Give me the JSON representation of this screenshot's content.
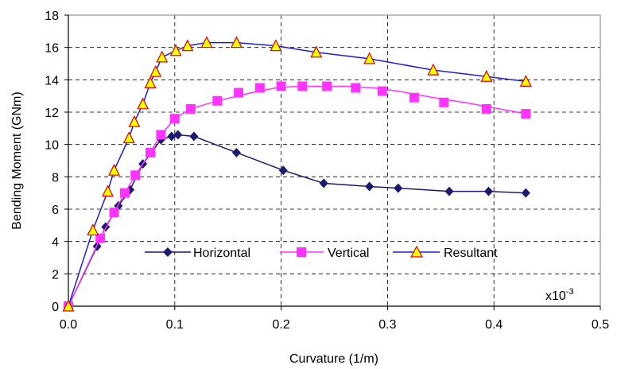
{
  "chart_data": {
    "type": "line",
    "xlabel": "Curvature (1/m)",
    "ylabel": "Bending Moment (GNm)",
    "x_multiplier_label": "x10",
    "x_multiplier_exp": "-3",
    "xlim": [
      0,
      0.5
    ],
    "ylim": [
      0,
      18
    ],
    "x_ticks": [
      "0.0",
      "0.1",
      "0.2",
      "0.3",
      "0.4",
      "0.5"
    ],
    "y_ticks": [
      "0",
      "2",
      "4",
      "6",
      "8",
      "10",
      "12",
      "14",
      "16",
      "18"
    ],
    "grid": true,
    "legend_position": "bottom-center",
    "series": [
      {
        "name": "Horizontal",
        "color": "#1a1a6e",
        "marker": "diamond",
        "points": [
          [
            0,
            0
          ],
          [
            0.027,
            3.7
          ],
          [
            0.035,
            4.9
          ],
          [
            0.047,
            6.2
          ],
          [
            0.058,
            7.2
          ],
          [
            0.07,
            8.8
          ],
          [
            0.078,
            9.5
          ],
          [
            0.087,
            10.3
          ],
          [
            0.097,
            10.5
          ],
          [
            0.103,
            10.6
          ],
          [
            0.118,
            10.5
          ],
          [
            0.158,
            9.5
          ],
          [
            0.202,
            8.4
          ],
          [
            0.24,
            7.6
          ],
          [
            0.283,
            7.4
          ],
          [
            0.31,
            7.3
          ],
          [
            0.358,
            7.1
          ],
          [
            0.395,
            7.1
          ],
          [
            0.43,
            7.0
          ]
        ],
        "marker_points": [
          [
            0,
            0
          ],
          [
            0.027,
            3.7
          ],
          [
            0.035,
            4.9
          ],
          [
            0.047,
            6.2
          ],
          [
            0.058,
            7.2
          ],
          [
            0.07,
            8.8
          ],
          [
            0.078,
            9.5
          ],
          [
            0.087,
            10.3
          ],
          [
            0.097,
            10.5
          ],
          [
            0.103,
            10.6
          ],
          [
            0.118,
            10.5
          ],
          [
            0.158,
            9.5
          ],
          [
            0.202,
            8.4
          ],
          [
            0.24,
            7.6
          ],
          [
            0.283,
            7.4
          ],
          [
            0.31,
            7.3
          ],
          [
            0.358,
            7.1
          ],
          [
            0.395,
            7.1
          ],
          [
            0.43,
            7.0
          ]
        ]
      },
      {
        "name": "Vertical",
        "color": "#ff33ff",
        "marker": "square",
        "points": [
          [
            0,
            0
          ],
          [
            0.03,
            4.2
          ],
          [
            0.043,
            5.8
          ],
          [
            0.053,
            7.0
          ],
          [
            0.063,
            8.1
          ],
          [
            0.077,
            9.5
          ],
          [
            0.087,
            10.6
          ],
          [
            0.1,
            11.6
          ],
          [
            0.115,
            12.2
          ],
          [
            0.14,
            12.7
          ],
          [
            0.172,
            13.2
          ],
          [
            0.195,
            13.5
          ],
          [
            0.215,
            13.6
          ],
          [
            0.233,
            13.6
          ],
          [
            0.262,
            13.6
          ],
          [
            0.287,
            13.5
          ],
          [
            0.31,
            13.3
          ],
          [
            0.343,
            12.9
          ],
          [
            0.372,
            12.6
          ],
          [
            0.405,
            12.2
          ],
          [
            0.43,
            11.9
          ]
        ],
        "marker_points": [
          [
            0,
            0
          ],
          [
            0.03,
            4.2
          ],
          [
            0.043,
            5.8
          ],
          [
            0.053,
            7.0
          ],
          [
            0.063,
            8.1
          ],
          [
            0.077,
            9.5
          ],
          [
            0.087,
            10.6
          ],
          [
            0.1,
            11.6
          ],
          [
            0.115,
            12.2
          ],
          [
            0.14,
            12.7
          ],
          [
            0.16,
            13.2
          ],
          [
            0.18,
            13.5
          ],
          [
            0.2,
            13.6
          ],
          [
            0.22,
            13.6
          ],
          [
            0.243,
            13.6
          ],
          [
            0.27,
            13.5
          ],
          [
            0.295,
            13.3
          ],
          [
            0.325,
            12.9
          ],
          [
            0.353,
            12.6
          ],
          [
            0.393,
            12.2
          ],
          [
            0.43,
            11.9
          ]
        ]
      },
      {
        "name": "Resultant",
        "color": "#1f1fcc",
        "marker": "triangle",
        "marker_fill": "#ffff00",
        "marker_stroke": "#dd0000",
        "points": [
          [
            0,
            0
          ],
          [
            0.023,
            4.7
          ],
          [
            0.037,
            7.1
          ],
          [
            0.043,
            8.4
          ],
          [
            0.057,
            10.4
          ],
          [
            0.062,
            11.4
          ],
          [
            0.07,
            12.5
          ],
          [
            0.077,
            13.8
          ],
          [
            0.082,
            14.5
          ],
          [
            0.088,
            15.4
          ],
          [
            0.101,
            15.8
          ],
          [
            0.112,
            16.1
          ],
          [
            0.13,
            16.3
          ],
          [
            0.158,
            16.3
          ],
          [
            0.195,
            16.1
          ],
          [
            0.233,
            15.7
          ],
          [
            0.283,
            15.3
          ],
          [
            0.343,
            14.6
          ],
          [
            0.393,
            14.2
          ],
          [
            0.43,
            13.9
          ]
        ],
        "marker_points": [
          [
            0,
            0
          ],
          [
            0.023,
            4.7
          ],
          [
            0.037,
            7.1
          ],
          [
            0.043,
            8.4
          ],
          [
            0.057,
            10.4
          ],
          [
            0.062,
            11.4
          ],
          [
            0.07,
            12.5
          ],
          [
            0.077,
            13.8
          ],
          [
            0.082,
            14.5
          ],
          [
            0.088,
            15.4
          ],
          [
            0.101,
            15.8
          ],
          [
            0.112,
            16.1
          ],
          [
            0.13,
            16.3
          ],
          [
            0.158,
            16.3
          ],
          [
            0.195,
            16.1
          ],
          [
            0.233,
            15.7
          ],
          [
            0.283,
            15.3
          ],
          [
            0.343,
            14.6
          ],
          [
            0.393,
            14.2
          ],
          [
            0.43,
            13.9
          ]
        ]
      }
    ]
  }
}
